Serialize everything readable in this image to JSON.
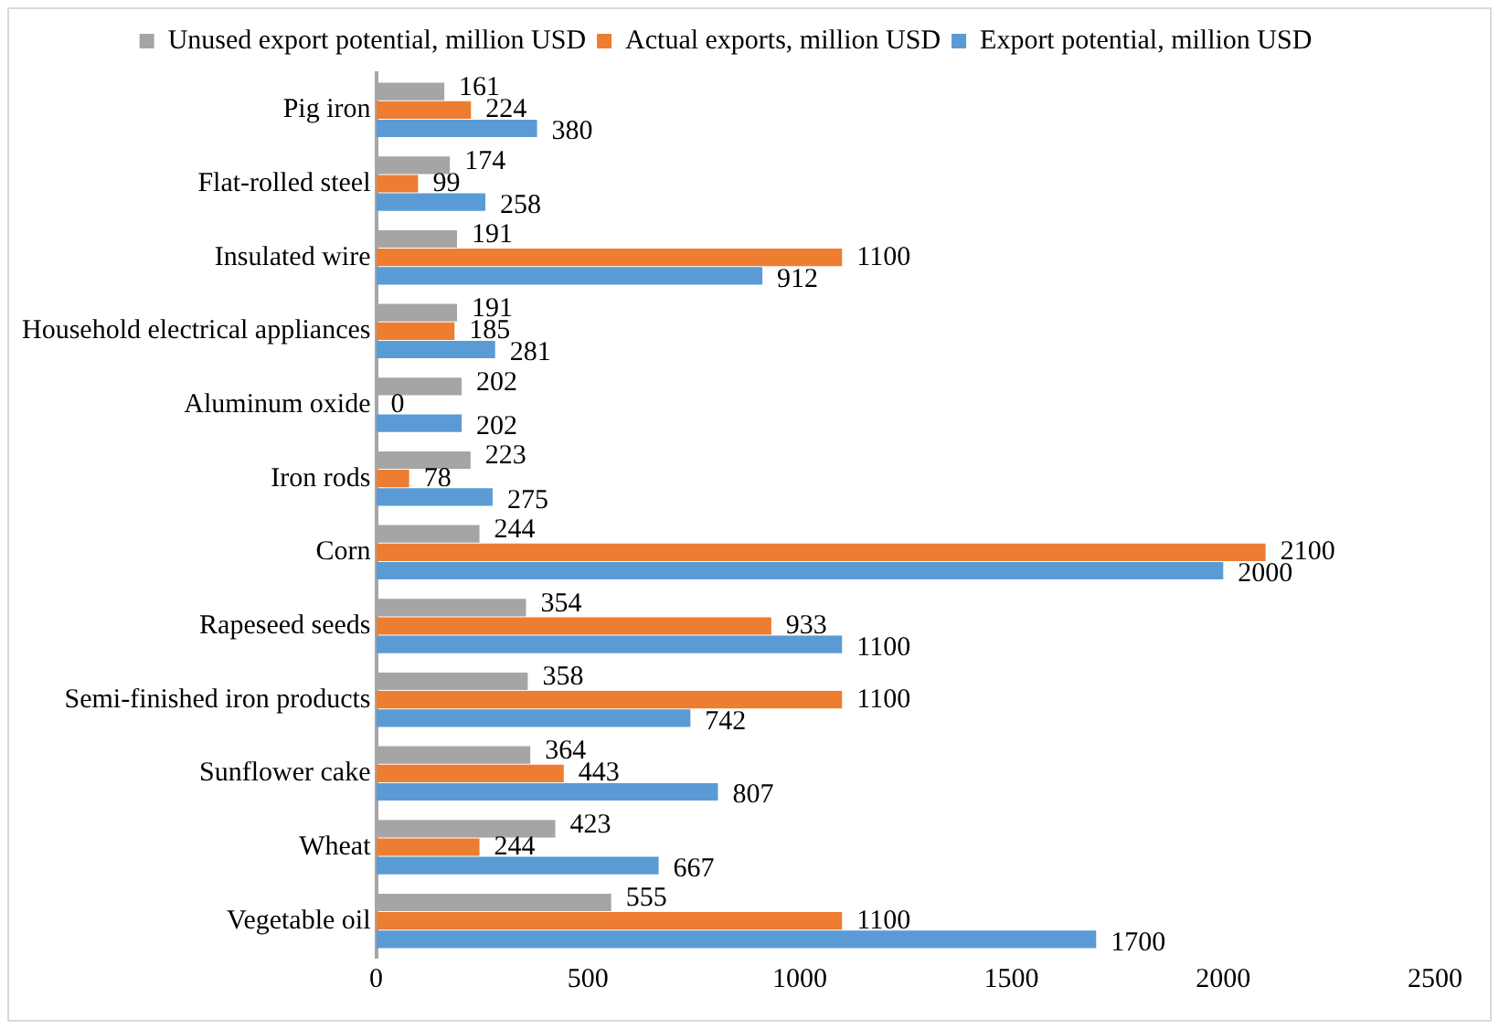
{
  "chart_data": {
    "type": "bar",
    "orientation": "horizontal",
    "categories": [
      "Pig iron",
      "Flat-rolled steel",
      "Insulated wire",
      "Household electrical appliances",
      "Aluminum oxide",
      "Iron rods",
      "Corn",
      "Rapeseed seeds",
      "Semi-finished iron products",
      "Sunflower cake",
      "Wheat",
      "Vegetable oil"
    ],
    "series": [
      {
        "name": "Unused export potential, million USD",
        "color": "#a5a5a5",
        "values": [
          161,
          174,
          191,
          191,
          202,
          223,
          244,
          354,
          358,
          364,
          423,
          555
        ]
      },
      {
        "name": "Actual exports, million USD",
        "color": "#ed7d31",
        "values": [
          224,
          99,
          1100,
          185,
          0,
          78,
          2100,
          933,
          1100,
          443,
          244,
          1100
        ]
      },
      {
        "name": "Export potential, million USD",
        "color": "#5b9bd5",
        "values": [
          380,
          258,
          912,
          281,
          202,
          275,
          2000,
          1100,
          742,
          807,
          667,
          1700
        ]
      }
    ],
    "xlim": [
      0,
      2500
    ],
    "xticks": [
      0,
      500,
      1000,
      1500,
      2000,
      2500
    ],
    "grid": false,
    "legend": "top",
    "data_labels": true
  }
}
